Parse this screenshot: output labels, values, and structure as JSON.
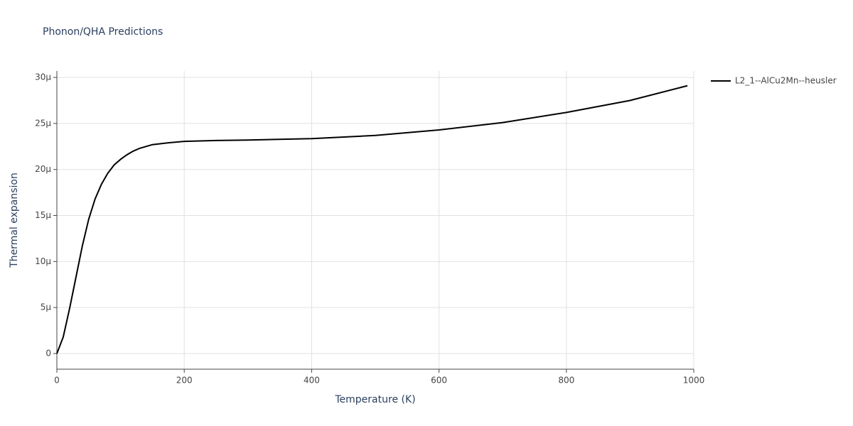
{
  "chart_data": {
    "type": "line",
    "title": "Phonon/QHA Predictions",
    "x_label": "Temperature (K)",
    "y_label": "Thermal expansion",
    "x": [
      0,
      10,
      20,
      30,
      40,
      50,
      60,
      70,
      80,
      90,
      100,
      110,
      120,
      130,
      140,
      150,
      175,
      200,
      250,
      300,
      400,
      500,
      600,
      700,
      800,
      900,
      990
    ],
    "series": [
      {
        "name": "L2_1--AlCu2Mn--heusler",
        "color": "#000000",
        "values": [
          0,
          1.8e-06,
          4.9e-06,
          8.3e-06,
          1.17e-05,
          1.46e-05,
          1.68e-05,
          1.84e-05,
          1.96e-05,
          2.05e-05,
          2.11e-05,
          2.16e-05,
          2.2e-05,
          2.23e-05,
          2.25e-05,
          2.27e-05,
          2.29e-05,
          2.305e-05,
          2.315e-05,
          2.32e-05,
          2.335e-05,
          2.37e-05,
          2.43e-05,
          2.51e-05,
          2.62e-05,
          2.75e-05,
          2.91e-05
        ]
      }
    ],
    "xlim": [
      0,
      1000
    ],
    "xticks": [
      0,
      200,
      400,
      600,
      800,
      1000
    ],
    "ylim": [
      -1.7e-06,
      3.07e-05
    ],
    "yticks": [
      0,
      {
        "value": 5e-06,
        "label": "5µ"
      },
      {
        "value": 1e-05,
        "label": "10µ"
      },
      {
        "value": 1.5e-05,
        "label": "15µ"
      },
      {
        "value": 2e-05,
        "label": "20µ"
      },
      {
        "value": 2.5e-05,
        "label": "25µ"
      },
      {
        "value": 3e-05,
        "label": "30µ"
      }
    ],
    "grid": true,
    "legend": "right"
  }
}
